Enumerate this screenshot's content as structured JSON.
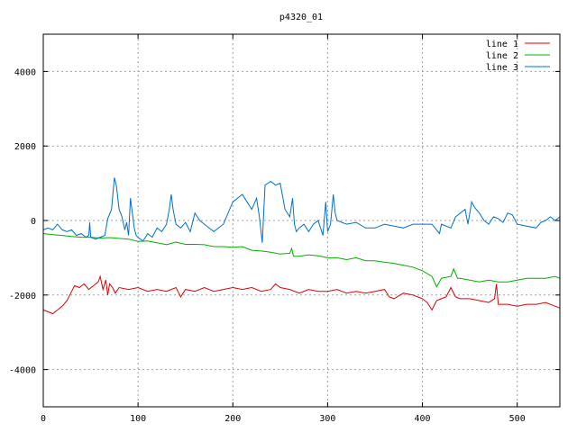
{
  "chart_data": {
    "type": "line",
    "title": "p4320_01",
    "xlabel": "",
    "ylabel": "",
    "xlim": [
      0,
      545
    ],
    "ylim": [
      -5000,
      5000
    ],
    "grid": true,
    "legend_position": "top-right",
    "x_ticks": [
      0,
      100,
      200,
      300,
      400,
      500
    ],
    "y_ticks": [
      -4000,
      -2000,
      0,
      2000,
      4000
    ],
    "series": [
      {
        "name": "line 1",
        "color": "#e00000",
        "points": [
          [
            0,
            -2400
          ],
          [
            5,
            -2450
          ],
          [
            10,
            -2500
          ],
          [
            15,
            -2400
          ],
          [
            20,
            -2300
          ],
          [
            25,
            -2150
          ],
          [
            30,
            -1900
          ],
          [
            33,
            -1750
          ],
          [
            38,
            -1800
          ],
          [
            43,
            -1700
          ],
          [
            48,
            -1850
          ],
          [
            53,
            -1750
          ],
          [
            58,
            -1650
          ],
          [
            60,
            -1500
          ],
          [
            63,
            -1850
          ],
          [
            66,
            -1600
          ],
          [
            68,
            -2000
          ],
          [
            70,
            -1700
          ],
          [
            73,
            -1800
          ],
          [
            76,
            -1950
          ],
          [
            80,
            -1800
          ],
          [
            90,
            -1850
          ],
          [
            100,
            -1800
          ],
          [
            110,
            -1900
          ],
          [
            120,
            -1850
          ],
          [
            130,
            -1900
          ],
          [
            140,
            -1800
          ],
          [
            145,
            -2050
          ],
          [
            150,
            -1850
          ],
          [
            160,
            -1900
          ],
          [
            170,
            -1800
          ],
          [
            180,
            -1900
          ],
          [
            190,
            -1850
          ],
          [
            200,
            -1800
          ],
          [
            210,
            -1850
          ],
          [
            220,
            -1800
          ],
          [
            230,
            -1900
          ],
          [
            240,
            -1850
          ],
          [
            245,
            -1700
          ],
          [
            250,
            -1800
          ],
          [
            260,
            -1850
          ],
          [
            270,
            -1950
          ],
          [
            280,
            -1850
          ],
          [
            290,
            -1900
          ],
          [
            300,
            -1900
          ],
          [
            310,
            -1850
          ],
          [
            320,
            -1950
          ],
          [
            330,
            -1900
          ],
          [
            340,
            -1950
          ],
          [
            350,
            -1900
          ],
          [
            360,
            -1850
          ],
          [
            365,
            -2050
          ],
          [
            370,
            -2100
          ],
          [
            380,
            -1950
          ],
          [
            390,
            -2000
          ],
          [
            395,
            -2050
          ],
          [
            400,
            -2100
          ],
          [
            405,
            -2200
          ],
          [
            410,
            -2400
          ],
          [
            415,
            -2150
          ],
          [
            420,
            -2100
          ],
          [
            425,
            -2050
          ],
          [
            430,
            -1800
          ],
          [
            435,
            -2050
          ],
          [
            440,
            -2100
          ],
          [
            450,
            -2100
          ],
          [
            460,
            -2150
          ],
          [
            470,
            -2200
          ],
          [
            476,
            -2100
          ],
          [
            478,
            -1700
          ],
          [
            480,
            -2250
          ],
          [
            490,
            -2250
          ],
          [
            500,
            -2300
          ],
          [
            510,
            -2250
          ],
          [
            520,
            -2250
          ],
          [
            530,
            -2200
          ],
          [
            540,
            -2300
          ],
          [
            545,
            -2350
          ]
        ]
      },
      {
        "name": "line 2",
        "color": "#00b000",
        "points": [
          [
            0,
            -350
          ],
          [
            10,
            -380
          ],
          [
            20,
            -400
          ],
          [
            30,
            -430
          ],
          [
            40,
            -450
          ],
          [
            50,
            -450
          ],
          [
            60,
            -470
          ],
          [
            70,
            -460
          ],
          [
            80,
            -480
          ],
          [
            90,
            -500
          ],
          [
            100,
            -560
          ],
          [
            110,
            -550
          ],
          [
            120,
            -600
          ],
          [
            130,
            -650
          ],
          [
            140,
            -580
          ],
          [
            150,
            -640
          ],
          [
            160,
            -640
          ],
          [
            170,
            -650
          ],
          [
            180,
            -700
          ],
          [
            190,
            -700
          ],
          [
            200,
            -720
          ],
          [
            210,
            -700
          ],
          [
            220,
            -800
          ],
          [
            230,
            -820
          ],
          [
            240,
            -850
          ],
          [
            250,
            -900
          ],
          [
            260,
            -880
          ],
          [
            262,
            -750
          ],
          [
            264,
            -960
          ],
          [
            270,
            -960
          ],
          [
            280,
            -920
          ],
          [
            290,
            -950
          ],
          [
            300,
            -1000
          ],
          [
            310,
            -1000
          ],
          [
            320,
            -1050
          ],
          [
            330,
            -1000
          ],
          [
            340,
            -1080
          ],
          [
            350,
            -1080
          ],
          [
            360,
            -1120
          ],
          [
            370,
            -1150
          ],
          [
            380,
            -1200
          ],
          [
            390,
            -1250
          ],
          [
            400,
            -1350
          ],
          [
            410,
            -1500
          ],
          [
            415,
            -1780
          ],
          [
            420,
            -1550
          ],
          [
            430,
            -1500
          ],
          [
            433,
            -1300
          ],
          [
            437,
            -1550
          ],
          [
            440,
            -1550
          ],
          [
            450,
            -1600
          ],
          [
            460,
            -1650
          ],
          [
            470,
            -1600
          ],
          [
            480,
            -1650
          ],
          [
            490,
            -1650
          ],
          [
            500,
            -1600
          ],
          [
            510,
            -1550
          ],
          [
            520,
            -1550
          ],
          [
            530,
            -1550
          ],
          [
            540,
            -1500
          ],
          [
            545,
            -1550
          ]
        ]
      },
      {
        "name": "line 3",
        "color": "#0070d0",
        "points": [
          [
            0,
            -250
          ],
          [
            5,
            -200
          ],
          [
            10,
            -250
          ],
          [
            15,
            -100
          ],
          [
            20,
            -250
          ],
          [
            25,
            -300
          ],
          [
            30,
            -250
          ],
          [
            35,
            -400
          ],
          [
            40,
            -350
          ],
          [
            45,
            -450
          ],
          [
            48,
            -400
          ],
          [
            49,
            -50
          ],
          [
            50,
            -450
          ],
          [
            55,
            -500
          ],
          [
            60,
            -450
          ],
          [
            65,
            -400
          ],
          [
            68,
            50
          ],
          [
            72,
            300
          ],
          [
            75,
            1150
          ],
          [
            77,
            950
          ],
          [
            80,
            300
          ],
          [
            83,
            100
          ],
          [
            86,
            -250
          ],
          [
            88,
            -50
          ],
          [
            90,
            -400
          ],
          [
            92,
            600
          ],
          [
            94,
            200
          ],
          [
            96,
            -200
          ],
          [
            98,
            -400
          ],
          [
            100,
            -450
          ],
          [
            105,
            -550
          ],
          [
            108,
            -450
          ],
          [
            110,
            -350
          ],
          [
            115,
            -450
          ],
          [
            120,
            -200
          ],
          [
            125,
            -300
          ],
          [
            130,
            -100
          ],
          [
            133,
            300
          ],
          [
            135,
            700
          ],
          [
            137,
            300
          ],
          [
            140,
            -100
          ],
          [
            145,
            -200
          ],
          [
            150,
            -50
          ],
          [
            155,
            -300
          ],
          [
            160,
            200
          ],
          [
            165,
            0
          ],
          [
            170,
            -100
          ],
          [
            180,
            -300
          ],
          [
            190,
            -100
          ],
          [
            195,
            200
          ],
          [
            200,
            500
          ],
          [
            210,
            700
          ],
          [
            215,
            500
          ],
          [
            220,
            300
          ],
          [
            225,
            600
          ],
          [
            228,
            100
          ],
          [
            231,
            -600
          ],
          [
            234,
            950
          ],
          [
            240,
            1050
          ],
          [
            245,
            950
          ],
          [
            250,
            1000
          ],
          [
            255,
            300
          ],
          [
            260,
            100
          ],
          [
            263,
            600
          ],
          [
            265,
            -100
          ],
          [
            267,
            -300
          ],
          [
            270,
            -200
          ],
          [
            275,
            -100
          ],
          [
            280,
            -300
          ],
          [
            285,
            -100
          ],
          [
            290,
            0
          ],
          [
            295,
            -400
          ],
          [
            298,
            500
          ],
          [
            300,
            -300
          ],
          [
            303,
            -100
          ],
          [
            306,
            700
          ],
          [
            308,
            200
          ],
          [
            310,
            0
          ],
          [
            320,
            -100
          ],
          [
            330,
            -50
          ],
          [
            340,
            -200
          ],
          [
            350,
            -200
          ],
          [
            360,
            -100
          ],
          [
            370,
            -150
          ],
          [
            380,
            -200
          ],
          [
            390,
            -100
          ],
          [
            400,
            -100
          ],
          [
            410,
            -100
          ],
          [
            418,
            -350
          ],
          [
            420,
            -100
          ],
          [
            430,
            -200
          ],
          [
            435,
            100
          ],
          [
            440,
            200
          ],
          [
            445,
            300
          ],
          [
            448,
            -100
          ],
          [
            452,
            500
          ],
          [
            455,
            350
          ],
          [
            460,
            200
          ],
          [
            465,
            0
          ],
          [
            470,
            -100
          ],
          [
            475,
            100
          ],
          [
            480,
            50
          ],
          [
            485,
            -50
          ],
          [
            490,
            200
          ],
          [
            495,
            150
          ],
          [
            500,
            -100
          ],
          [
            510,
            -150
          ],
          [
            520,
            -200
          ],
          [
            525,
            -50
          ],
          [
            530,
            0
          ],
          [
            535,
            100
          ],
          [
            540,
            0
          ],
          [
            545,
            100
          ]
        ]
      }
    ]
  }
}
